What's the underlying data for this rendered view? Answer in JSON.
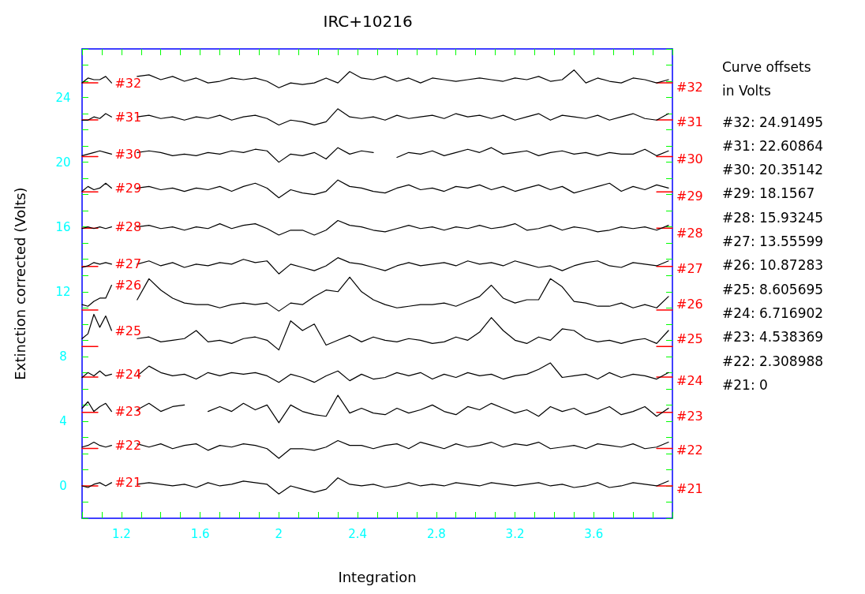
{
  "chart_data": {
    "type": "line",
    "title": "IRC+10216",
    "xlabel": "Integration",
    "ylabel": "Extinction corrected (Volts)",
    "xlim": [
      1,
      4
    ],
    "xticks": [
      {
        "value": 1.0,
        "label": null
      },
      {
        "value": 1.1,
        "label": null
      },
      1.2,
      {
        "value": 1.3,
        "label": null
      },
      {
        "value": 1.4,
        "label": null
      },
      {
        "value": 1.5,
        "label": null
      },
      1.6,
      {
        "value": 1.7,
        "label": null
      },
      {
        "value": 1.8,
        "label": null
      },
      {
        "value": 1.9,
        "label": null
      },
      2,
      {
        "value": 2.1,
        "label": null
      },
      {
        "value": 2.2,
        "label": null
      },
      {
        "value": 2.3,
        "label": null
      },
      2.4,
      {
        "value": 2.5,
        "label": null
      },
      {
        "value": 2.6,
        "label": null
      },
      {
        "value": 2.7,
        "label": null
      },
      2.8,
      {
        "value": 2.9,
        "label": null
      },
      {
        "value": 3.0,
        "label": null
      },
      {
        "value": 3.1,
        "label": null
      },
      3.2,
      {
        "value": 3.3,
        "label": null
      },
      {
        "value": 3.4,
        "label": null
      },
      {
        "value": 3.5,
        "label": null
      },
      3.6,
      {
        "value": 3.7,
        "label": null
      },
      {
        "value": 3.8,
        "label": null
      },
      {
        "value": 3.9,
        "label": null
      },
      {
        "value": 4.0,
        "label": null
      }
    ],
    "ylim": [
      -2,
      27
    ],
    "yticks": [
      {
        "value": -2,
        "label": null
      },
      {
        "value": -1,
        "label": null
      },
      0,
      {
        "value": 1,
        "label": null
      },
      {
        "value": 2,
        "label": null
      },
      {
        "value": 3,
        "label": null
      },
      4,
      {
        "value": 5,
        "label": null
      },
      {
        "value": 6,
        "label": null
      },
      {
        "value": 7,
        "label": null
      },
      8,
      {
        "value": 9,
        "label": null
      },
      {
        "value": 10,
        "label": null
      },
      {
        "value": 11,
        "label": null
      },
      12,
      {
        "value": 13,
        "label": null
      },
      {
        "value": 14,
        "label": null
      },
      {
        "value": 15,
        "label": null
      },
      16,
      {
        "value": 17,
        "label": null
      },
      {
        "value": 18,
        "label": null
      },
      {
        "value": 19,
        "label": null
      },
      20,
      {
        "value": 21,
        "label": null
      },
      {
        "value": 22,
        "label": null
      },
      {
        "value": 23,
        "label": null
      },
      24,
      {
        "value": 25,
        "label": null
      },
      {
        "value": 26,
        "label": null
      },
      {
        "value": 27,
        "label": null
      }
    ],
    "grid": false,
    "legend": false,
    "marker": "none",
    "line_style": "solid",
    "x": [
      1,
      1.03,
      1.06,
      1.09,
      1.12,
      1.15,
      1.2,
      1.28,
      1.34,
      1.4,
      1.46,
      1.52,
      1.58,
      1.64,
      1.7,
      1.76,
      1.82,
      1.88,
      1.94,
      2.0,
      2.06,
      2.12,
      2.18,
      2.24,
      2.3,
      2.36,
      2.42,
      2.48,
      2.54,
      2.6,
      2.66,
      2.72,
      2.78,
      2.84,
      2.9,
      2.96,
      3.02,
      3.08,
      3.14,
      3.2,
      3.26,
      3.32,
      3.38,
      3.44,
      3.5,
      3.56,
      3.62,
      3.68,
      3.74,
      3.8,
      3.86,
      3.92,
      3.98
    ],
    "series": [
      {
        "name": "#32",
        "color": "#000000",
        "values": [
          24.9,
          25.2,
          25.1,
          25.1,
          25.3,
          24.9,
          null,
          25.3,
          25.4,
          25.1,
          25.3,
          25.0,
          25.2,
          24.9,
          25.0,
          25.2,
          25.1,
          25.2,
          25.0,
          24.6,
          24.9,
          24.8,
          24.9,
          25.2,
          24.9,
          25.6,
          25.2,
          25.1,
          25.3,
          25.0,
          25.2,
          24.9,
          25.2,
          25.1,
          25.0,
          25.1,
          25.2,
          25.1,
          25.0,
          25.2,
          25.1,
          25.3,
          25.0,
          25.1,
          25.7,
          24.9,
          25.2,
          25.0,
          24.9,
          25.2,
          25.1,
          24.9,
          25.1
        ]
      },
      {
        "name": "#31",
        "color": "#000000",
        "values": [
          22.6,
          22.6,
          22.8,
          22.7,
          23.0,
          22.8,
          null,
          22.8,
          22.9,
          22.7,
          22.8,
          22.6,
          22.8,
          22.7,
          22.9,
          22.6,
          22.8,
          22.9,
          22.7,
          22.3,
          22.6,
          22.5,
          22.3,
          22.5,
          23.3,
          22.8,
          22.7,
          22.8,
          22.6,
          22.9,
          22.7,
          22.8,
          22.9,
          22.7,
          23.0,
          22.8,
          22.9,
          22.7,
          22.9,
          22.6,
          22.8,
          23.0,
          22.6,
          22.9,
          22.8,
          22.7,
          22.9,
          22.6,
          22.8,
          23.0,
          22.7,
          22.6,
          23.0
        ]
      },
      {
        "name": "#30",
        "color": "#000000",
        "values": [
          20.4,
          20.5,
          20.6,
          20.7,
          20.6,
          20.5,
          null,
          20.6,
          20.7,
          20.6,
          20.4,
          20.5,
          20.4,
          20.6,
          20.5,
          20.7,
          20.6,
          20.8,
          20.7,
          20.0,
          20.5,
          20.4,
          20.6,
          20.2,
          20.9,
          20.5,
          20.7,
          20.6,
          null,
          20.3,
          20.6,
          20.5,
          20.7,
          20.4,
          20.6,
          20.8,
          20.6,
          20.9,
          20.5,
          20.6,
          20.7,
          20.4,
          20.6,
          20.7,
          20.5,
          20.6,
          20.4,
          20.6,
          20.5,
          20.5,
          20.8,
          20.4,
          20.7
        ]
      },
      {
        "name": "#29",
        "color": "#000000",
        "values": [
          18.2,
          18.5,
          18.3,
          18.4,
          18.7,
          18.4,
          null,
          18.4,
          18.5,
          18.3,
          18.4,
          18.2,
          18.4,
          18.3,
          18.5,
          18.2,
          18.5,
          18.7,
          18.4,
          17.8,
          18.3,
          18.1,
          18.0,
          18.2,
          18.9,
          18.5,
          18.4,
          18.2,
          18.1,
          18.4,
          18.6,
          18.3,
          18.4,
          18.2,
          18.5,
          18.4,
          18.6,
          18.3,
          18.5,
          18.2,
          18.4,
          18.6,
          18.3,
          18.5,
          18.1,
          18.3,
          18.5,
          18.7,
          18.2,
          18.5,
          18.3,
          18.6,
          18.4
        ]
      },
      {
        "name": "#28",
        "color": "#000000",
        "values": [
          15.9,
          16.0,
          15.9,
          16.0,
          15.9,
          16.0,
          null,
          16.0,
          16.1,
          15.9,
          16.0,
          15.8,
          16.0,
          15.9,
          16.2,
          15.9,
          16.1,
          16.2,
          15.9,
          15.5,
          15.8,
          15.8,
          15.5,
          15.8,
          16.4,
          16.1,
          16.0,
          15.8,
          15.7,
          15.9,
          16.1,
          15.9,
          16.0,
          15.8,
          16.0,
          15.9,
          16.1,
          15.9,
          16.0,
          16.2,
          15.8,
          15.9,
          16.1,
          15.8,
          16.0,
          15.9,
          15.7,
          15.8,
          16.0,
          15.9,
          16.0,
          15.8,
          16.1
        ]
      },
      {
        "name": "#27",
        "color": "#000000",
        "values": [
          13.5,
          13.6,
          13.8,
          13.7,
          13.8,
          13.7,
          null,
          13.7,
          13.9,
          13.6,
          13.8,
          13.5,
          13.7,
          13.6,
          13.8,
          13.7,
          14.0,
          13.8,
          13.9,
          13.1,
          13.7,
          13.5,
          13.3,
          13.6,
          14.1,
          13.8,
          13.7,
          13.5,
          13.3,
          13.6,
          13.8,
          13.6,
          13.7,
          13.8,
          13.6,
          13.9,
          13.7,
          13.8,
          13.6,
          13.9,
          13.7,
          13.5,
          13.6,
          13.3,
          13.6,
          13.8,
          13.9,
          13.6,
          13.5,
          13.8,
          13.7,
          13.6,
          13.9
        ]
      },
      {
        "name": "#26",
        "color": "#000000",
        "values": [
          11.2,
          11.1,
          11.4,
          11.6,
          11.6,
          12.4,
          null,
          11.5,
          12.8,
          12.1,
          11.6,
          11.3,
          11.2,
          11.2,
          11.0,
          11.2,
          11.3,
          11.2,
          11.3,
          10.8,
          11.3,
          11.2,
          11.7,
          12.1,
          12.0,
          12.9,
          12.0,
          11.5,
          11.2,
          11.0,
          11.1,
          11.2,
          11.2,
          11.3,
          11.1,
          11.4,
          11.7,
          12.4,
          11.6,
          11.3,
          11.5,
          11.5,
          12.8,
          12.3,
          11.4,
          11.3,
          11.1,
          11.1,
          11.3,
          11.0,
          11.2,
          11.0,
          11.7
        ]
      },
      {
        "name": "#25",
        "color": "#000000",
        "values": [
          9.1,
          9.4,
          10.6,
          9.8,
          10.5,
          9.6,
          null,
          9.1,
          9.2,
          8.9,
          9.0,
          9.1,
          9.6,
          8.9,
          9.0,
          8.8,
          9.1,
          9.2,
          9.0,
          8.4,
          10.2,
          9.6,
          10.0,
          8.7,
          9.0,
          9.3,
          8.9,
          9.2,
          9.0,
          8.9,
          9.1,
          9.0,
          8.8,
          8.9,
          9.2,
          9.0,
          9.5,
          10.4,
          9.6,
          9.0,
          8.8,
          9.2,
          9.0,
          9.7,
          9.6,
          9.1,
          8.9,
          9.0,
          8.8,
          9.0,
          9.1,
          8.8,
          9.6
        ]
      },
      {
        "name": "#24",
        "color": "#000000",
        "values": [
          6.7,
          7.0,
          6.8,
          7.1,
          6.8,
          6.9,
          null,
          6.8,
          7.4,
          7.0,
          6.8,
          6.9,
          6.6,
          7.0,
          6.8,
          7.0,
          6.9,
          7.0,
          6.8,
          6.4,
          6.9,
          6.7,
          6.4,
          6.8,
          7.1,
          6.5,
          6.9,
          6.6,
          6.7,
          7.0,
          6.8,
          7.0,
          6.6,
          6.9,
          6.7,
          7.0,
          6.8,
          6.9,
          6.6,
          6.8,
          6.9,
          7.2,
          7.6,
          6.7,
          6.8,
          6.9,
          6.6,
          7.0,
          6.7,
          6.9,
          6.8,
          6.6,
          7.0
        ]
      },
      {
        "name": "#23",
        "color": "#000000",
        "values": [
          4.8,
          5.2,
          4.6,
          4.9,
          5.1,
          4.6,
          null,
          4.7,
          5.1,
          4.6,
          4.9,
          5.0,
          null,
          4.6,
          4.9,
          4.6,
          5.1,
          4.7,
          5.0,
          3.9,
          5.0,
          4.6,
          4.4,
          4.3,
          5.6,
          4.5,
          4.8,
          4.5,
          4.4,
          4.8,
          4.5,
          4.7,
          5.0,
          4.6,
          4.4,
          4.9,
          4.7,
          5.1,
          4.8,
          4.5,
          4.7,
          4.3,
          4.9,
          4.6,
          4.8,
          4.4,
          4.6,
          4.9,
          4.4,
          4.6,
          4.9,
          4.3,
          4.8
        ]
      },
      {
        "name": "#22",
        "color": "#000000",
        "values": [
          2.4,
          2.5,
          2.7,
          2.5,
          2.4,
          2.5,
          null,
          2.6,
          2.4,
          2.6,
          2.3,
          2.5,
          2.6,
          2.2,
          2.5,
          2.4,
          2.6,
          2.5,
          2.3,
          1.7,
          2.3,
          2.3,
          2.2,
          2.4,
          2.8,
          2.5,
          2.5,
          2.3,
          2.5,
          2.6,
          2.3,
          2.7,
          2.5,
          2.3,
          2.6,
          2.4,
          2.5,
          2.7,
          2.4,
          2.6,
          2.5,
          2.7,
          2.3,
          2.4,
          2.5,
          2.3,
          2.6,
          2.5,
          2.4,
          2.6,
          2.3,
          2.4,
          2.7
        ]
      },
      {
        "name": "#21",
        "color": "#000000",
        "values": [
          0.0,
          -0.1,
          0.1,
          0.2,
          0.0,
          0.2,
          null,
          0.1,
          0.2,
          0.1,
          0.0,
          0.1,
          -0.1,
          0.2,
          0.0,
          0.1,
          0.3,
          0.2,
          0.1,
          -0.5,
          0.0,
          -0.2,
          -0.4,
          -0.2,
          0.5,
          0.1,
          0.0,
          0.1,
          -0.1,
          0.0,
          0.2,
          0.0,
          0.1,
          0.0,
          0.2,
          0.1,
          0.0,
          0.2,
          0.1,
          0.0,
          0.1,
          0.2,
          0.0,
          0.1,
          -0.1,
          0.0,
          0.2,
          -0.1,
          0.0,
          0.2,
          0.1,
          0.0,
          0.3
        ]
      },
      {
        "color": "#ff0000",
        "x": [
          1,
          1.08,
          2.5,
          3.92,
          4
        ],
        "values": [
          24.91,
          24.91,
          null,
          24.91,
          24.91
        ]
      },
      {
        "color": "#ff0000",
        "x": [
          1,
          1.08,
          2.5,
          3.92,
          4
        ],
        "values": [
          22.61,
          22.61,
          null,
          22.61,
          22.61
        ]
      },
      {
        "color": "#ff0000",
        "x": [
          1,
          1.08,
          2.5,
          3.92,
          4
        ],
        "values": [
          20.35,
          20.35,
          null,
          20.35,
          20.35
        ]
      },
      {
        "color": "#ff0000",
        "x": [
          1,
          1.08,
          2.5,
          3.92,
          4
        ],
        "values": [
          18.16,
          18.16,
          null,
          18.16,
          18.16
        ]
      },
      {
        "color": "#ff0000",
        "x": [
          1,
          1.08,
          2.5,
          3.92,
          4
        ],
        "values": [
          15.93,
          15.93,
          null,
          15.93,
          15.93
        ]
      },
      {
        "color": "#ff0000",
        "x": [
          1,
          1.08,
          2.5,
          3.92,
          4
        ],
        "values": [
          13.56,
          13.56,
          null,
          13.56,
          13.56
        ]
      },
      {
        "color": "#ff0000",
        "x": [
          1,
          1.08,
          2.5,
          3.92,
          4
        ],
        "values": [
          10.87,
          10.87,
          null,
          10.87,
          10.87
        ]
      },
      {
        "color": "#ff0000",
        "x": [
          1,
          1.08,
          2.5,
          3.92,
          4
        ],
        "values": [
          8.61,
          8.61,
          null,
          8.61,
          8.61
        ]
      },
      {
        "color": "#ff0000",
        "x": [
          1,
          1.08,
          2.5,
          3.92,
          4
        ],
        "values": [
          6.72,
          6.72,
          null,
          6.72,
          6.72
        ]
      },
      {
        "color": "#ff0000",
        "x": [
          1,
          1.08,
          2.5,
          3.92,
          4
        ],
        "values": [
          4.54,
          4.54,
          null,
          4.54,
          4.54
        ]
      },
      {
        "color": "#ff0000",
        "x": [
          1,
          1.08,
          2.5,
          3.92,
          4
        ],
        "values": [
          2.31,
          2.31,
          null,
          2.31,
          2.31
        ]
      },
      {
        "color": "#ff0000",
        "x": [
          1,
          1.08,
          2.5,
          3.92,
          4
        ],
        "values": [
          0,
          0,
          null,
          0,
          0
        ]
      }
    ],
    "annotations": [
      "Curve offsets",
      "in Volts",
      "#32: 24.91495",
      "#31: 22.60864",
      "#30: 20.35142",
      "#29: 18.1567",
      "#28: 15.93245",
      "#27: 13.55599",
      "#26: 10.87283",
      "#25: 8.605695",
      "#24: 6.716902",
      "#23: 4.538369",
      "#22: 2.308988",
      "#21: 0"
    ]
  }
}
